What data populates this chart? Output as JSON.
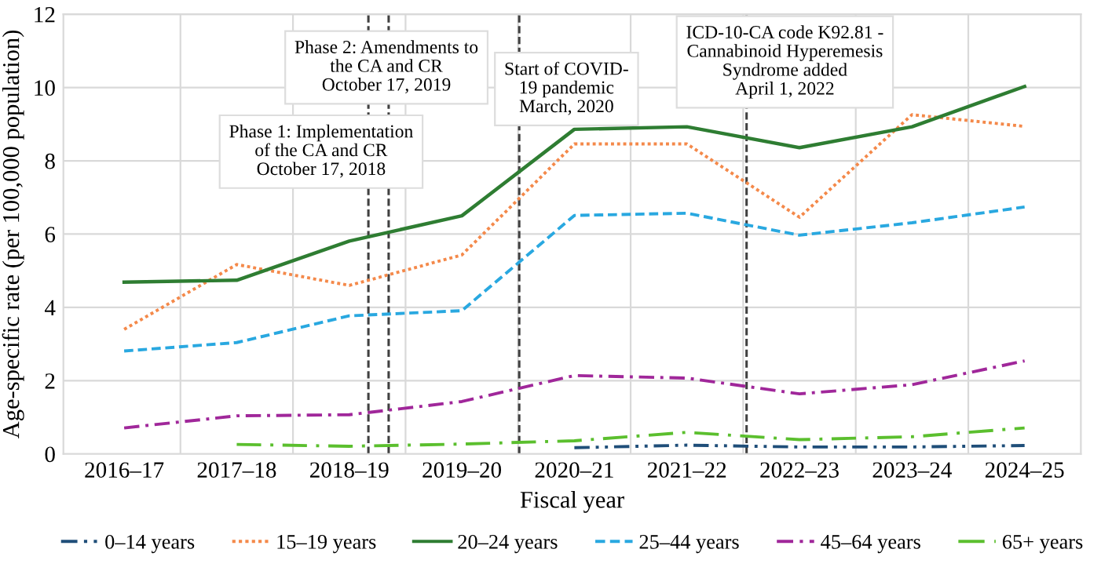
{
  "chart_data": {
    "type": "line",
    "xlabel": "Fiscal year",
    "ylabel": "Age-specific rate (per 100,000 population)",
    "categories": [
      "2016–17",
      "2017–18",
      "2018–19",
      "2019–20",
      "2020–21",
      "2021–22",
      "2022–23",
      "2023–24",
      "2024–25"
    ],
    "ylim": [
      0,
      12
    ],
    "yticks": [
      0,
      2,
      4,
      6,
      8,
      10,
      12
    ],
    "grid": true,
    "legend": "bottom",
    "marker": "none",
    "series": [
      {
        "name": "0–14 years",
        "color": "#1f4e79",
        "line_style": "dashdotdot",
        "values": [
          null,
          null,
          null,
          null,
          0.17,
          0.24,
          0.19,
          0.19,
          0.23
        ]
      },
      {
        "name": "15–19 years",
        "color": "#f4894a",
        "line_style": "dotted",
        "values": [
          3.4,
          5.17,
          4.6,
          5.43,
          8.46,
          8.46,
          6.46,
          9.26,
          8.94
        ]
      },
      {
        "name": "20–24 years",
        "color": "#2e7d32",
        "line_style": "solid",
        "values": [
          4.69,
          4.74,
          5.81,
          6.5,
          8.86,
          8.93,
          8.36,
          8.93,
          10.03
        ]
      },
      {
        "name": "25–44 years",
        "color": "#29a8e0",
        "line_style": "dashed",
        "values": [
          2.81,
          3.04,
          3.77,
          3.91,
          6.51,
          6.57,
          5.97,
          6.31,
          6.74
        ]
      },
      {
        "name": "45–64 years",
        "color": "#a0279a",
        "line_style": "dashdot",
        "values": [
          0.71,
          1.04,
          1.07,
          1.43,
          2.14,
          2.07,
          1.64,
          1.89,
          2.54
        ]
      },
      {
        "name": "65+ years",
        "color": "#5bbf2e",
        "line_style": "longdashdot",
        "values": [
          null,
          0.26,
          0.21,
          0.27,
          0.36,
          0.59,
          0.39,
          0.47,
          0.71
        ]
      }
    ],
    "annotations": [
      "Phase 1: Implementation\nof the CA and CR\nOctober 17, 2018",
      "Phase 2: Amendments to\nthe CA and CR\nOctober 17, 2019",
      "Start of COVID-\n19 pandemic\nMarch, 2020",
      "ICD-10-CA code K92.81 -\nCannabinoid Hyperemesis\nSyndrome added\nApril 1, 2022"
    ]
  }
}
